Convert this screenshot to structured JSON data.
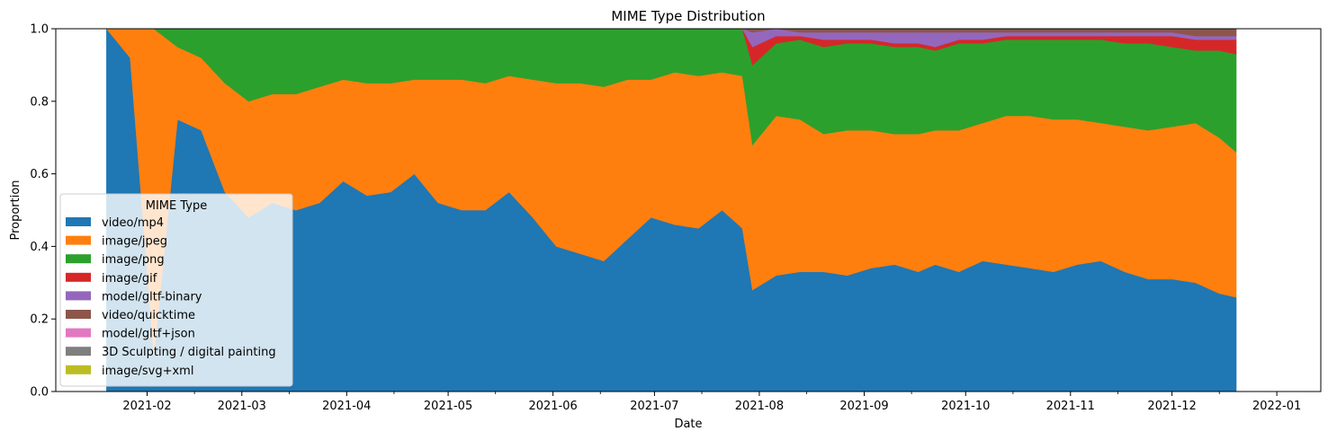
{
  "chart_data": {
    "type": "area",
    "stacked": true,
    "title": "MIME Type Distribution",
    "xlabel": "Date",
    "ylabel": "Proportion",
    "xlim": [
      "2021-01-05",
      "2022-01-14"
    ],
    "ylim": [
      0,
      1
    ],
    "x_ticks": [
      "2021-02",
      "2021-03",
      "2021-04",
      "2021-05",
      "2021-06",
      "2021-07",
      "2021-08",
      "2021-09",
      "2021-10",
      "2021-11",
      "2021-12",
      "2022-01"
    ],
    "y_ticks": [
      "0.0",
      "0.2",
      "0.4",
      "0.6",
      "0.8",
      "1.0"
    ],
    "grid": false,
    "legend": {
      "title": "MIME Type",
      "placement": "lower-left"
    },
    "x": [
      "2021-01-20",
      "2021-01-27",
      "2021-02-03",
      "2021-02-10",
      "2021-02-17",
      "2021-02-24",
      "2021-03-03",
      "2021-03-10",
      "2021-03-17",
      "2021-03-24",
      "2021-03-31",
      "2021-04-07",
      "2021-04-14",
      "2021-04-21",
      "2021-04-28",
      "2021-05-05",
      "2021-05-12",
      "2021-05-19",
      "2021-05-26",
      "2021-06-02",
      "2021-06-09",
      "2021-06-16",
      "2021-06-23",
      "2021-06-30",
      "2021-07-07",
      "2021-07-14",
      "2021-07-21",
      "2021-07-27",
      "2021-07-30",
      "2021-08-06",
      "2021-08-13",
      "2021-08-20",
      "2021-08-27",
      "2021-09-03",
      "2021-09-10",
      "2021-09-17",
      "2021-09-22",
      "2021-09-29",
      "2021-10-06",
      "2021-10-13",
      "2021-10-20",
      "2021-10-27",
      "2021-11-03",
      "2021-11-10",
      "2021-11-17",
      "2021-11-24",
      "2021-12-01",
      "2021-12-08",
      "2021-12-15",
      "2021-12-20"
    ],
    "series": [
      {
        "name": "video/mp4",
        "color": "#1f77b4",
        "values": [
          1.0,
          0.92,
          0.1,
          0.75,
          0.72,
          0.55,
          0.48,
          0.52,
          0.5,
          0.52,
          0.58,
          0.54,
          0.55,
          0.6,
          0.52,
          0.5,
          0.5,
          0.55,
          0.48,
          0.4,
          0.38,
          0.36,
          0.42,
          0.48,
          0.46,
          0.45,
          0.5,
          0.45,
          0.28,
          0.32,
          0.33,
          0.33,
          0.32,
          0.34,
          0.35,
          0.33,
          0.35,
          0.33,
          0.36,
          0.35,
          0.34,
          0.33,
          0.35,
          0.36,
          0.33,
          0.31,
          0.31,
          0.3,
          0.27,
          0.26
        ]
      },
      {
        "name": "image/jpeg",
        "color": "#ff7f0e",
        "values": [
          0.0,
          0.08,
          0.9,
          0.2,
          0.2,
          0.3,
          0.32,
          0.3,
          0.32,
          0.32,
          0.28,
          0.31,
          0.3,
          0.26,
          0.34,
          0.36,
          0.35,
          0.32,
          0.38,
          0.45,
          0.47,
          0.48,
          0.44,
          0.38,
          0.42,
          0.42,
          0.38,
          0.42,
          0.4,
          0.44,
          0.42,
          0.38,
          0.4,
          0.38,
          0.36,
          0.38,
          0.37,
          0.39,
          0.38,
          0.41,
          0.42,
          0.42,
          0.4,
          0.38,
          0.4,
          0.41,
          0.42,
          0.44,
          0.43,
          0.4
        ]
      },
      {
        "name": "image/png",
        "color": "#2ca02c",
        "values": [
          0.0,
          0.0,
          0.0,
          0.05,
          0.08,
          0.15,
          0.2,
          0.18,
          0.18,
          0.16,
          0.14,
          0.15,
          0.15,
          0.14,
          0.14,
          0.14,
          0.15,
          0.13,
          0.14,
          0.15,
          0.15,
          0.16,
          0.14,
          0.14,
          0.12,
          0.13,
          0.12,
          0.13,
          0.22,
          0.2,
          0.22,
          0.24,
          0.24,
          0.24,
          0.24,
          0.24,
          0.22,
          0.24,
          0.22,
          0.21,
          0.21,
          0.22,
          0.22,
          0.23,
          0.23,
          0.24,
          0.22,
          0.2,
          0.24,
          0.27
        ]
      },
      {
        "name": "image/gif",
        "color": "#d62728",
        "values": [
          0,
          0,
          0,
          0,
          0,
          0,
          0,
          0,
          0,
          0,
          0,
          0,
          0,
          0,
          0,
          0,
          0,
          0,
          0,
          0,
          0,
          0,
          0,
          0,
          0,
          0,
          0,
          0,
          0.05,
          0.02,
          0.01,
          0.02,
          0.01,
          0.01,
          0.01,
          0.01,
          0.01,
          0.01,
          0.01,
          0.01,
          0.01,
          0.01,
          0.01,
          0.01,
          0.02,
          0.02,
          0.03,
          0.03,
          0.03,
          0.04
        ]
      },
      {
        "name": "model/gltf-binary",
        "color": "#9467bd",
        "values": [
          0,
          0,
          0,
          0,
          0,
          0,
          0,
          0,
          0,
          0,
          0,
          0,
          0,
          0,
          0,
          0,
          0,
          0,
          0,
          0,
          0,
          0,
          0,
          0,
          0,
          0,
          0,
          0,
          0.04,
          0.02,
          0.01,
          0.02,
          0.02,
          0.02,
          0.03,
          0.03,
          0.04,
          0.02,
          0.02,
          0.01,
          0.01,
          0.01,
          0.01,
          0.01,
          0.01,
          0.01,
          0.01,
          0.01,
          0.01,
          0.01
        ]
      },
      {
        "name": "video/quicktime",
        "color": "#8c564b",
        "values": [
          0,
          0,
          0,
          0,
          0,
          0,
          0,
          0,
          0,
          0,
          0,
          0,
          0,
          0,
          0,
          0,
          0,
          0,
          0,
          0,
          0,
          0,
          0,
          0,
          0,
          0,
          0,
          0,
          0.01,
          0.0,
          0.01,
          0.01,
          0.01,
          0.01,
          0.01,
          0.01,
          0.01,
          0.01,
          0.01,
          0.01,
          0.01,
          0.01,
          0.01,
          0.01,
          0.01,
          0.01,
          0.01,
          0.02,
          0.02,
          0.02
        ]
      },
      {
        "name": "model/gltf+json",
        "color": "#e377c2",
        "values": [
          0,
          0,
          0,
          0,
          0,
          0,
          0,
          0,
          0,
          0,
          0,
          0,
          0,
          0,
          0,
          0,
          0,
          0,
          0,
          0,
          0,
          0,
          0,
          0,
          0,
          0,
          0,
          0,
          0,
          0,
          0,
          0,
          0,
          0,
          0,
          0,
          0,
          0,
          0,
          0,
          0,
          0,
          0,
          0,
          0,
          0,
          0,
          0,
          0,
          0
        ]
      },
      {
        "name": "3D Sculpting / digital painting",
        "color": "#7f7f7f",
        "values": [
          0,
          0,
          0,
          0,
          0,
          0,
          0,
          0,
          0,
          0,
          0,
          0,
          0,
          0,
          0,
          0,
          0,
          0,
          0,
          0,
          0,
          0,
          0,
          0,
          0,
          0,
          0,
          0,
          0,
          0,
          0,
          0,
          0,
          0,
          0,
          0,
          0,
          0,
          0,
          0,
          0,
          0,
          0,
          0,
          0,
          0,
          0,
          0,
          0,
          0
        ]
      },
      {
        "name": "image/svg+xml",
        "color": "#bcbd22",
        "values": [
          0,
          0,
          0,
          0,
          0,
          0,
          0,
          0,
          0,
          0,
          0,
          0,
          0,
          0,
          0,
          0,
          0,
          0,
          0,
          0,
          0,
          0,
          0,
          0,
          0,
          0,
          0,
          0,
          0,
          0,
          0,
          0,
          0,
          0,
          0,
          0,
          0,
          0,
          0,
          0,
          0,
          0,
          0,
          0,
          0,
          0,
          0,
          0,
          0,
          0
        ]
      }
    ]
  }
}
